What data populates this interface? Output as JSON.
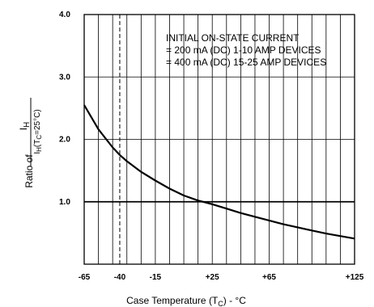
{
  "chart_data": {
    "type": "line",
    "title": "",
    "xlabel": {
      "main": "Case Temperature (T",
      "sub": "C",
      "tail": ") - °C"
    },
    "ylabel": {
      "prefix": "Ratio of",
      "num_main": "I",
      "num_sub": "H",
      "den_main": "I",
      "den_sub": "H",
      "den_tail": "(T",
      "den_sub2": "C",
      "den_end": "=25°C)"
    },
    "annotation": [
      "INITIAL ON-STATE CURRENT",
      "= 200 mA (DC) 1-10 AMP DEVICES",
      "= 400 mA (DC) 15-25 AMP DEVICES"
    ],
    "x_ticks": [
      {
        "value": -65,
        "label": "-65"
      },
      {
        "value": -40,
        "label": "-40"
      },
      {
        "value": -15,
        "label": "-15"
      },
      {
        "value": 25,
        "label": "+25"
      },
      {
        "value": 65,
        "label": "+65"
      },
      {
        "value": 125,
        "label": "+125"
      }
    ],
    "y_ticks": [
      {
        "value": 1.0,
        "label": "1.0"
      },
      {
        "value": 2.0,
        "label": "2.0"
      },
      {
        "value": 3.0,
        "label": "3.0"
      },
      {
        "value": 4.0,
        "label": "4.0"
      }
    ],
    "xlim": [
      -65,
      125
    ],
    "ylim": [
      0,
      4
    ],
    "grid": true,
    "series": [
      {
        "x": [
          -65,
          -55,
          -45,
          -40,
          -35,
          -25,
          -15,
          -5,
          5,
          15,
          25,
          35,
          45,
          55,
          65,
          75,
          85,
          95,
          105,
          115,
          125
        ],
        "y": [
          2.55,
          2.16,
          1.87,
          1.75,
          1.65,
          1.48,
          1.34,
          1.21,
          1.1,
          1.02,
          0.96,
          0.89,
          0.82,
          0.76,
          0.7,
          0.64,
          0.59,
          0.54,
          0.49,
          0.45,
          0.41
        ]
      }
    ],
    "reference_line": {
      "y": 1.0
    },
    "dashed_line": {
      "x": -40
    }
  }
}
